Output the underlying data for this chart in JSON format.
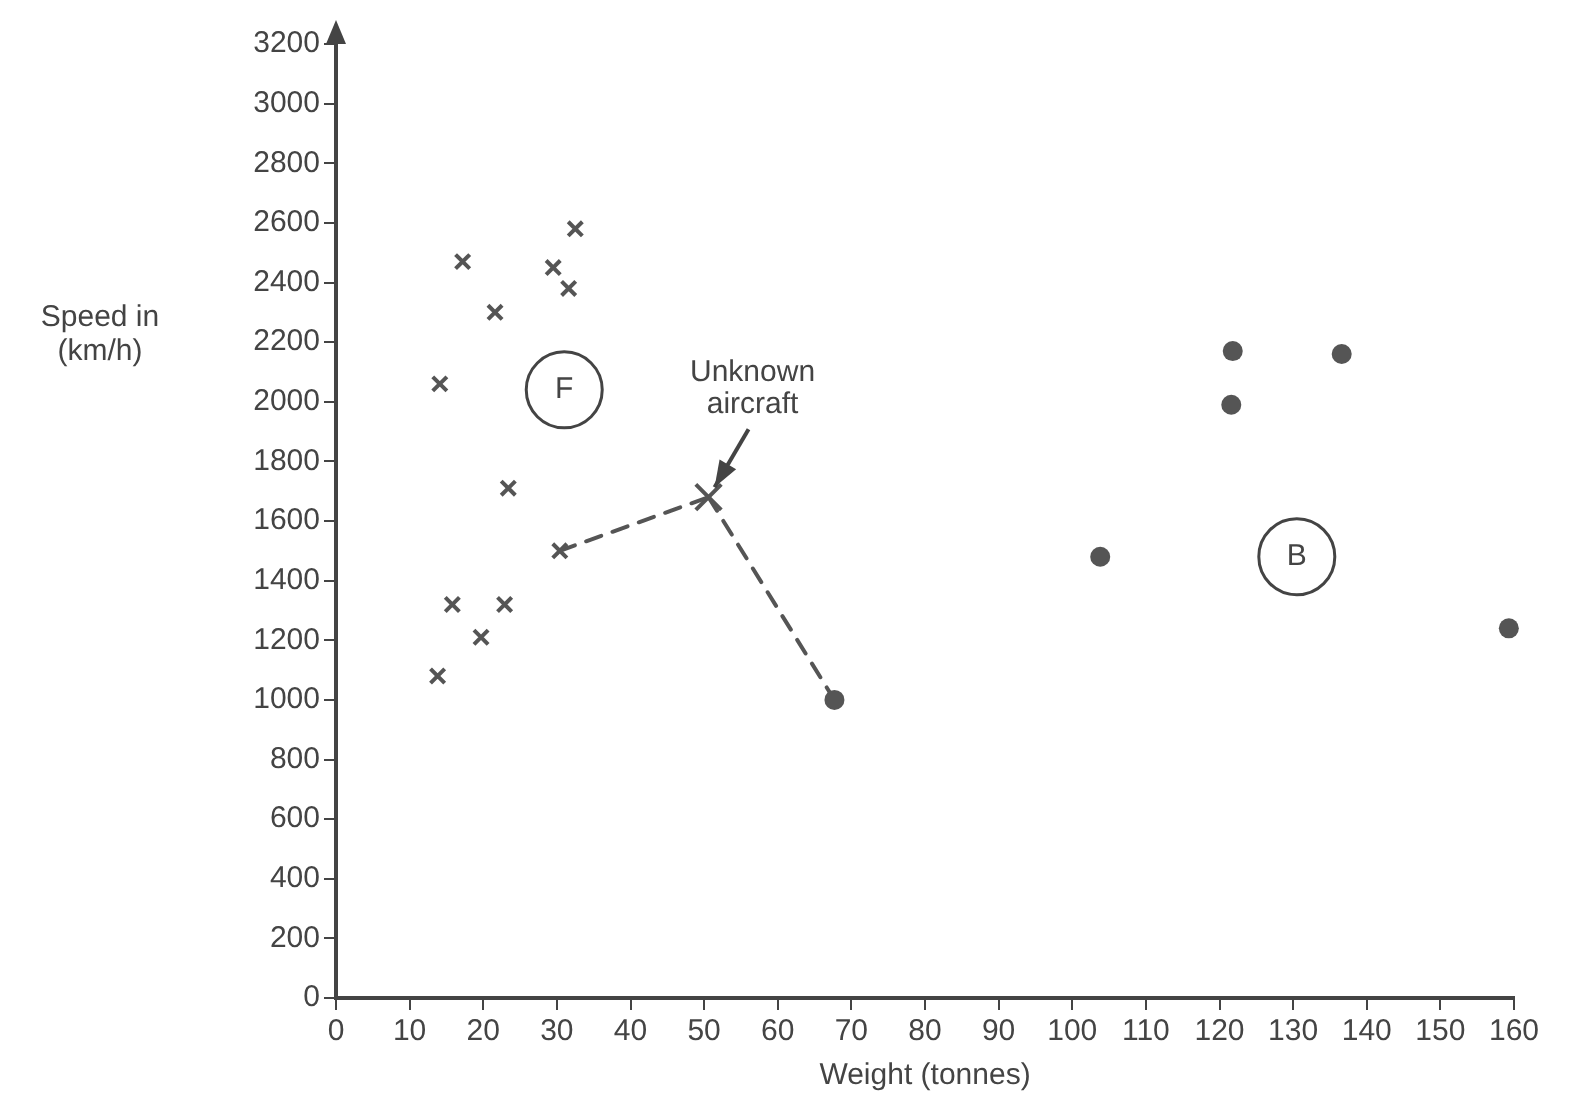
{
  "chart_data": {
    "type": "scatter",
    "xlabel": "Weight (tonnes)",
    "ylabel": "Speed in (km/h)",
    "xlim": [
      0,
      160
    ],
    "xticks": [
      0,
      10,
      20,
      30,
      40,
      50,
      60,
      70,
      80,
      90,
      100,
      110,
      120,
      130,
      140,
      150,
      160
    ],
    "ylim": [
      0,
      3200
    ],
    "yticks": [
      0,
      200,
      400,
      600,
      800,
      1000,
      1200,
      1400,
      1600,
      1800,
      2000,
      2200,
      2400,
      2600,
      2800,
      3000,
      3200
    ],
    "grid": false,
    "legend": false,
    "series": [
      {
        "type": "scatter",
        "marker": "cross",
        "color": "#555555",
        "x": [
          32.5,
          17.2,
          29.5,
          31.6,
          21.6,
          14.1,
          23.4,
          30.4,
          15.8,
          22.9,
          19.7,
          13.8
        ],
        "values": [
          2580,
          2470,
          2450,
          2380,
          2300,
          2060,
          1710,
          1500,
          1320,
          1320,
          1210,
          1080
        ]
      },
      {
        "type": "scatter",
        "marker": "circle",
        "color": "#555555",
        "x": [
          121.8,
          136.6,
          121.6,
          103.8,
          159.3,
          67.7
        ],
        "values": [
          2170,
          2160,
          1990,
          1480,
          1240,
          1000
        ]
      },
      {
        "type": "line",
        "marker": "none",
        "line_style": "dashed",
        "color": "#555555",
        "x": [
          30.4,
          50.6
        ],
        "values": [
          1500,
          1680
        ]
      },
      {
        "type": "line",
        "marker": "none",
        "line_style": "dashed",
        "color": "#555555",
        "x": [
          50.6,
          67.7
        ],
        "values": [
          1680,
          1000
        ]
      },
      {
        "type": "scatter",
        "marker": "cross",
        "color": "#555555",
        "x": [
          50.6
        ],
        "values": [
          1680
        ]
      }
    ],
    "annotations": [
      {
        "text": "F",
        "x": 31,
        "y": 2040
      },
      {
        "text": "B",
        "x": 130.5,
        "y": 1480
      },
      {
        "text": "Unknown aircraft",
        "x": 50.6,
        "y": 1680
      }
    ]
  }
}
